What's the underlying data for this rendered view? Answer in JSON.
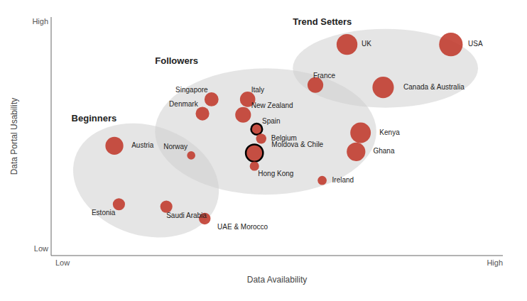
{
  "chart_data": {
    "type": "scatter",
    "x_label": "Data Availability",
    "y_label": "Data Portal Usability",
    "xlim": [
      0,
      10
    ],
    "ylim": [
      0,
      10
    ],
    "tick_labels": false,
    "grid": false,
    "color": "#c0392b",
    "axis_end_labels": {
      "low": "Low",
      "high": "High"
    },
    "points": [
      {
        "name": "UK",
        "x": 6.55,
        "y": 8.85,
        "size": 350
      },
      {
        "name": "USA",
        "x": 8.85,
        "y": 8.85,
        "size": 450
      },
      {
        "name": "France",
        "x": 5.85,
        "y": 7.15,
        "size": 200
      },
      {
        "name": "Canada & Australia",
        "x": 7.35,
        "y": 7.05,
        "size": 370
      },
      {
        "name": "Singapore",
        "x": 3.55,
        "y": 6.55,
        "size": 160
      },
      {
        "name": "Italy",
        "x": 4.35,
        "y": 6.55,
        "size": 190
      },
      {
        "name": "Denmark",
        "x": 3.35,
        "y": 5.95,
        "size": 150
      },
      {
        "name": "New Zealand",
        "x": 4.25,
        "y": 5.9,
        "size": 200
      },
      {
        "name": "Spain",
        "x": 4.55,
        "y": 5.3,
        "size": 100,
        "marker": "outlined"
      },
      {
        "name": "Belgium",
        "x": 4.65,
        "y": 4.9,
        "size": 85
      },
      {
        "name": "Moldova & Chile",
        "x": 4.5,
        "y": 4.3,
        "size": 240,
        "marker": "outlined"
      },
      {
        "name": "Hong Kong",
        "x": 4.5,
        "y": 3.75,
        "size": 70
      },
      {
        "name": "Kenya",
        "x": 6.85,
        "y": 5.15,
        "size": 340
      },
      {
        "name": "Ghana",
        "x": 6.75,
        "y": 4.35,
        "size": 280
      },
      {
        "name": "Ireland",
        "x": 6.0,
        "y": 3.15,
        "size": 65
      },
      {
        "name": "Norway",
        "x": 3.1,
        "y": 4.2,
        "size": 55
      },
      {
        "name": "Austria",
        "x": 1.4,
        "y": 4.6,
        "size": 260
      },
      {
        "name": "Estonia",
        "x": 1.5,
        "y": 2.15,
        "size": 120
      },
      {
        "name": "Saudi Arabia",
        "x": 2.55,
        "y": 2.05,
        "size": 120
      },
      {
        "name": "UAE & Morocco",
        "x": 3.4,
        "y": 1.55,
        "size": 110
      }
    ],
    "regions": [
      {
        "label": "Trend Setters",
        "cx": 7.4,
        "cy": 7.85,
        "rx": 2.05,
        "ry": 1.65,
        "angle": 0,
        "color": "#d0d0d0"
      },
      {
        "label": "Followers",
        "cx": 4.75,
        "cy": 5.2,
        "rx": 2.45,
        "ry": 2.65,
        "angle": 0,
        "color": "#d0d0d0"
      },
      {
        "label": "Beginners",
        "cx": 2.1,
        "cy": 3.15,
        "rx": 1.65,
        "ry": 2.3,
        "angle": -18,
        "color": "#d0d0d0"
      }
    ]
  }
}
